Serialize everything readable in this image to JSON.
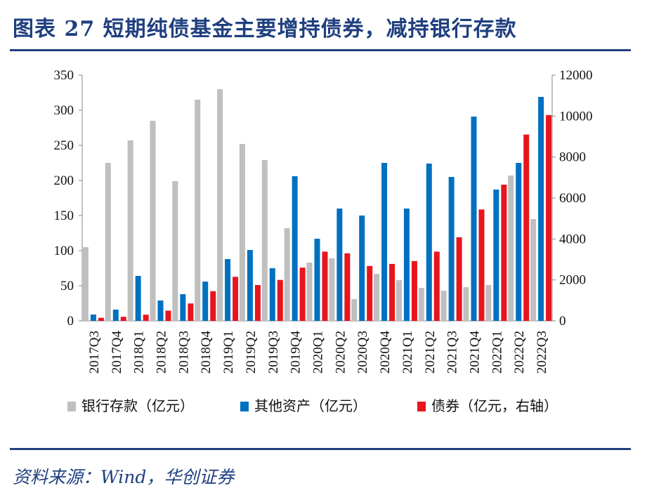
{
  "title": "图表 27  短期纯债基金主要增持债券，减持银行存款",
  "source": "资料来源：Wind，华创证券",
  "chart_data": {
    "type": "bar",
    "categories": [
      "2017Q3",
      "2017Q4",
      "2018Q1",
      "2018Q2",
      "2018Q3",
      "2018Q4",
      "2019Q1",
      "2019Q2",
      "2019Q3",
      "2019Q4",
      "2020Q1",
      "2020Q2",
      "2020Q3",
      "2020Q4",
      "2021Q1",
      "2021Q2",
      "2021Q3",
      "2021Q4",
      "2022Q1",
      "2022Q2",
      "2022Q3"
    ],
    "left_axis": {
      "ylim": [
        0,
        350
      ],
      "ticks": [
        "0",
        "50",
        "100",
        "150",
        "200",
        "250",
        "300",
        "350"
      ]
    },
    "right_axis": {
      "ylim": [
        0,
        12000
      ],
      "ticks": [
        "0",
        "2000",
        "4000",
        "6000",
        "8000",
        "10000",
        "12000"
      ]
    },
    "series": [
      {
        "name": "银行存款（亿元）",
        "axis": "left",
        "color": "#bfbfbf",
        "values": [
          105,
          225,
          257,
          285,
          199,
          315,
          330,
          252,
          229,
          132,
          83,
          89,
          31,
          67,
          58,
          47,
          43,
          48,
          51,
          207,
          145
        ]
      },
      {
        "name": "其他资产（亿元）",
        "axis": "left",
        "color": "#0070c0",
        "values": [
          9,
          16,
          64,
          29,
          38,
          56,
          88,
          101,
          75,
          206,
          117,
          160,
          150,
          225,
          160,
          224,
          205,
          291,
          187,
          225,
          319
        ]
      },
      {
        "name": "债券（亿元，右轴）",
        "axis": "right",
        "color": "#e8141e",
        "values": [
          150,
          200,
          300,
          500,
          850,
          1450,
          2150,
          1750,
          2000,
          2600,
          3380,
          3300,
          2680,
          2780,
          2920,
          3380,
          4080,
          5440,
          6650,
          9100,
          10050
        ]
      }
    ],
    "legend_position": "bottom",
    "grid": false
  }
}
